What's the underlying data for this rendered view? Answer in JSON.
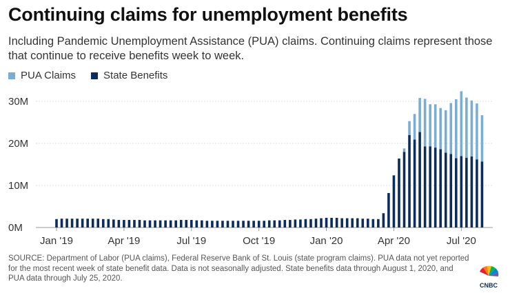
{
  "header": {
    "title": "Continuing claims for unemployment benefits",
    "subtitle": "Including Pandemic Unemployment Assistance (PUA) claims. Continuing claims represent those that continue to receive benefits week to week."
  },
  "legend": {
    "items": [
      {
        "label": "PUA Claims",
        "color": "#7aadd4"
      },
      {
        "label": "State Benefits",
        "color": "#0c2c5c"
      }
    ]
  },
  "footer": {
    "source": "SOURCE: Department of Labor (PUA claims), Federal Reserve Bank of St. Louis (state program claims). PUA data not yet reported for the most recent week of state benefit data. Data is not seasonally adjusted. State benefits data through August 1, 2020, and PUA data through July 25, 2020.",
    "logo": "CNBC"
  },
  "chart_data": {
    "type": "bar",
    "stacked": true,
    "y_unit": "millions",
    "ylim": [
      0,
      33
    ],
    "yticks": [
      {
        "value": 0,
        "label": "0M"
      },
      {
        "value": 10,
        "label": "10M"
      },
      {
        "value": 20,
        "label": "20M"
      },
      {
        "value": 30,
        "label": "30M"
      }
    ],
    "xticks": [
      {
        "index": 0,
        "label": "Jan '19"
      },
      {
        "index": 13,
        "label": "Apr '19"
      },
      {
        "index": 26,
        "label": "Jul '19"
      },
      {
        "index": 39,
        "label": "Oct '19"
      },
      {
        "index": 52,
        "label": "Jan '20"
      },
      {
        "index": 65,
        "label": "Apr '20"
      },
      {
        "index": 78,
        "label": "Jul '20"
      }
    ],
    "grid": true,
    "series": [
      {
        "name": "State Benefits",
        "color": "#0c2c5c",
        "values": [
          2.0,
          2.1,
          2.1,
          2.1,
          2.1,
          2.1,
          2.1,
          2.1,
          2.1,
          2.0,
          2.0,
          1.9,
          1.8,
          1.8,
          1.8,
          1.8,
          1.8,
          1.7,
          1.7,
          1.7,
          1.7,
          1.7,
          1.7,
          1.7,
          1.8,
          1.8,
          1.8,
          1.7,
          1.7,
          1.6,
          1.6,
          1.6,
          1.6,
          1.6,
          1.6,
          1.6,
          1.6,
          1.6,
          1.6,
          1.6,
          1.6,
          1.7,
          1.7,
          1.7,
          1.8,
          1.8,
          1.9,
          1.9,
          2.0,
          2.0,
          2.1,
          2.2,
          2.3,
          2.3,
          2.3,
          2.2,
          2.2,
          2.2,
          2.2,
          2.1,
          2.1,
          2.0,
          2.0,
          3.4,
          8.2,
          12.4,
          16.4,
          18.0,
          22.0,
          20.9,
          22.7,
          19.3,
          19.3,
          19.0,
          18.6,
          17.8,
          17.5,
          16.5,
          17.0,
          16.6,
          16.9,
          16.2,
          15.7
        ]
      },
      {
        "name": "PUA Claims",
        "color": "#7aadd4",
        "values": [
          0,
          0,
          0,
          0,
          0,
          0,
          0,
          0,
          0,
          0,
          0,
          0,
          0,
          0,
          0,
          0,
          0,
          0,
          0,
          0,
          0,
          0,
          0,
          0,
          0,
          0,
          0,
          0,
          0,
          0,
          0,
          0,
          0,
          0,
          0,
          0,
          0,
          0,
          0,
          0,
          0,
          0,
          0,
          0,
          0,
          0,
          0,
          0,
          0,
          0,
          0,
          0,
          0,
          0,
          0,
          0,
          0,
          0,
          0,
          0,
          0,
          0,
          0,
          0,
          0,
          0,
          0,
          0.8,
          3.3,
          6.1,
          8.1,
          11.3,
          10.0,
          10.3,
          9.8,
          10.1,
          12.1,
          14.0,
          15.4,
          14.3,
          13.3,
          13.3,
          11.0,
          0
        ]
      }
    ]
  }
}
